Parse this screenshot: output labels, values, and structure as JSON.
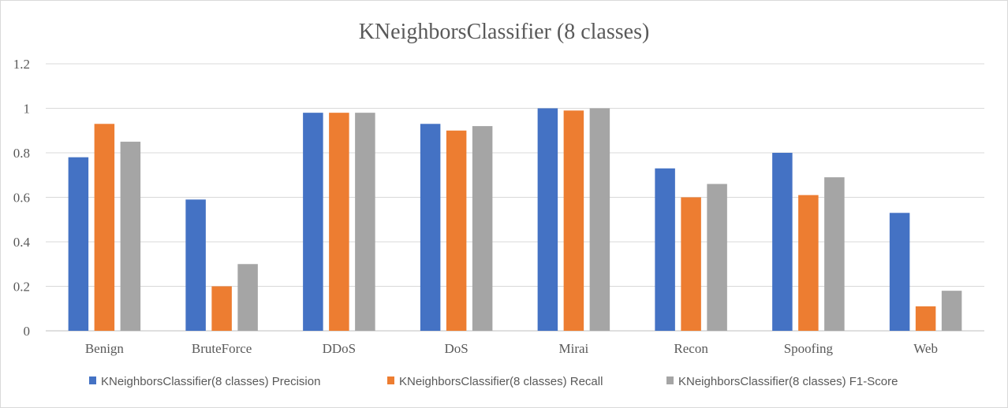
{
  "chart_data": {
    "type": "bar",
    "title": "KNeighborsClassifier (8 classes)",
    "xlabel": "",
    "ylabel": "",
    "ylim": [
      0,
      1.2
    ],
    "yticks": [
      "0",
      "0.2",
      "0.4",
      "0.6",
      "0.8",
      "1",
      "1.2"
    ],
    "ytick_values": [
      0,
      0.2,
      0.4,
      0.6,
      0.8,
      1.0,
      1.2
    ],
    "grid": true,
    "legend_position": "bottom",
    "categories": [
      "Benign",
      "BruteForce",
      "DDoS",
      "DoS",
      "Mirai",
      "Recon",
      "Spoofing",
      "Web"
    ],
    "series": [
      {
        "name": "KNeighborsClassifier(8 classes) Precision",
        "color": "#4472C4",
        "values": [
          0.78,
          0.59,
          0.98,
          0.93,
          1.0,
          0.73,
          0.8,
          0.53
        ]
      },
      {
        "name": "KNeighborsClassifier(8 classes) Recall",
        "color": "#ED7D31",
        "values": [
          0.93,
          0.2,
          0.98,
          0.9,
          0.99,
          0.6,
          0.61,
          0.11
        ]
      },
      {
        "name": "KNeighborsClassifier(8 classes) F1-Score",
        "color": "#A5A5A5",
        "values": [
          0.85,
          0.3,
          0.98,
          0.92,
          1.0,
          0.66,
          0.69,
          0.18
        ]
      }
    ]
  }
}
